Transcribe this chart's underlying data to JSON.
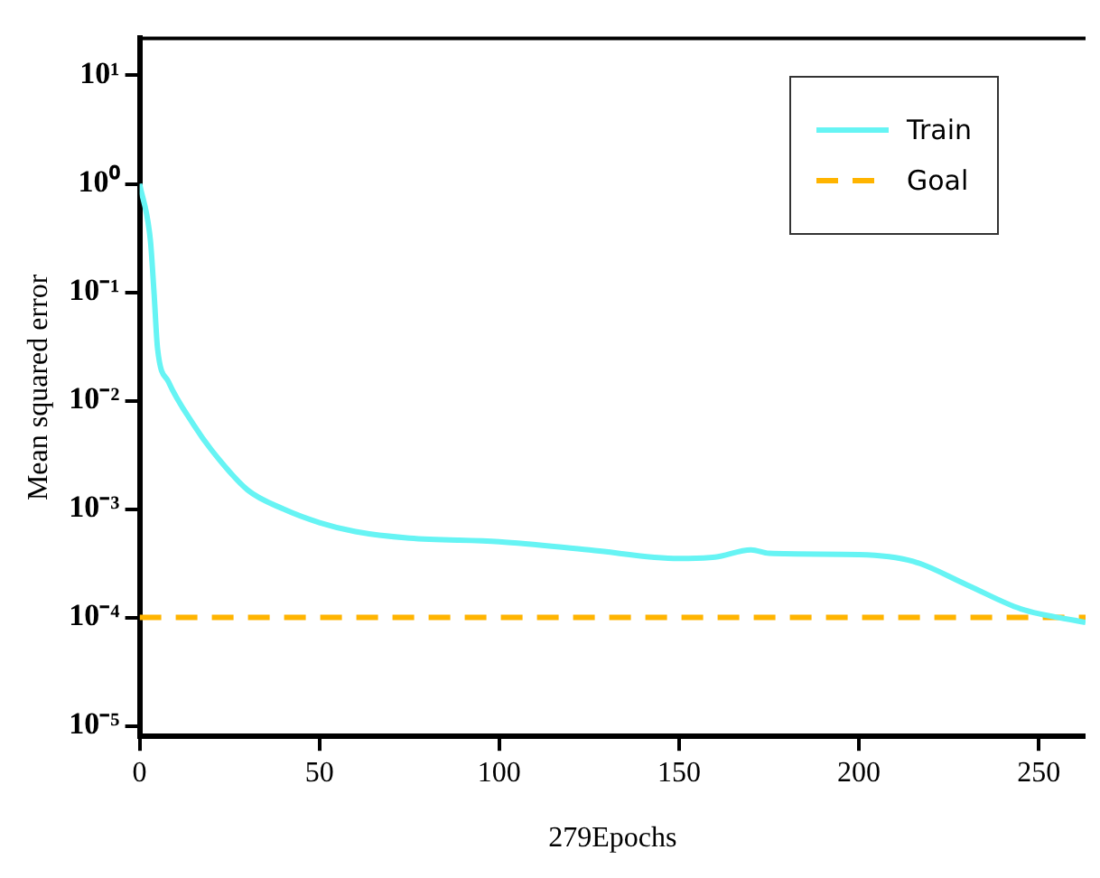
{
  "chart_data": {
    "type": "line",
    "xlabel": "279Epochs",
    "ylabel": "Mean squared error",
    "log": "y",
    "grid": false,
    "legend": "top right",
    "marker": "none",
    "xlim": [
      0,
      263
    ],
    "xticks": [
      0,
      50,
      100,
      150,
      200,
      250
    ],
    "ylim": [
      8e-06,
      22
    ],
    "yticks": [
      {
        "value": 1e-05,
        "label": "10⁻⁵"
      },
      {
        "value": 0.0001,
        "label": "10⁻⁴"
      },
      {
        "value": 0.001,
        "label": "10⁻³"
      },
      {
        "value": 0.01,
        "label": "10⁻²"
      },
      {
        "value": 0.1,
        "label": "10⁻¹"
      },
      {
        "value": 1,
        "label": "10⁰"
      },
      {
        "value": 10,
        "label": "10¹"
      }
    ],
    "series": [
      {
        "name": "Train",
        "color": "#66f4f4",
        "line_style": "solid",
        "x": [
          0,
          3,
          4,
          5,
          8,
          15,
          20,
          30,
          40,
          50,
          60,
          75,
          100,
          125,
          150,
          160,
          170,
          175,
          200,
          215,
          230,
          245,
          263
        ],
        "values": [
          1,
          0.3,
          0.1,
          0.03,
          0.015,
          0.006,
          0.0035,
          0.0015,
          0.001,
          0.00075,
          0.00062,
          0.00054,
          0.0005,
          0.00042,
          0.00035,
          0.00036,
          0.00042,
          0.00039,
          0.00038,
          0.00033,
          0.0002,
          0.00012,
          9e-05
        ]
      },
      {
        "name": "Goal",
        "color": "#ffb400",
        "line_style": "dashed",
        "x": [
          0,
          263
        ],
        "values": [
          0.0001,
          0.0001
        ]
      }
    ]
  }
}
